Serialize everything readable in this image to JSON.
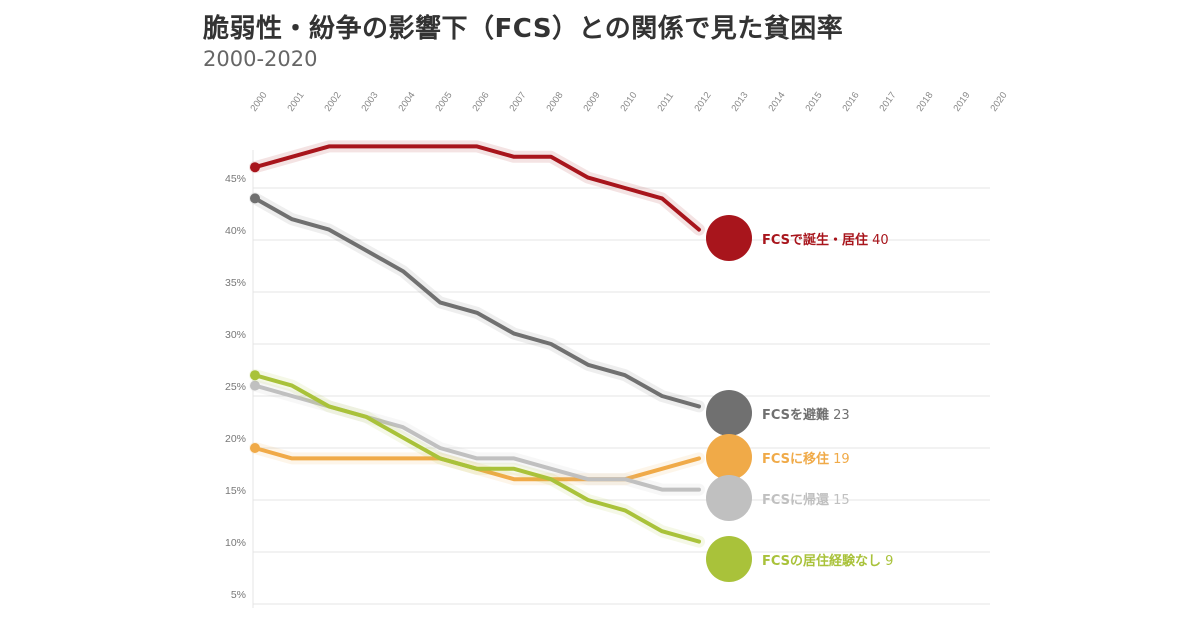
{
  "header": {
    "title": "脆弱性・紛争の影響下（FCS）との関係で見た貧困率",
    "subtitle": "2000-2020"
  },
  "chart_data": {
    "type": "line",
    "title": "脆弱性・紛争の影響下（FCS）との関係で見た貧困率",
    "subtitle": "2000-2020",
    "x": [
      2000,
      2001,
      2002,
      2003,
      2004,
      2005,
      2006,
      2007,
      2008,
      2009,
      2010,
      2011,
      2012,
      2013,
      2014,
      2015,
      2016,
      2017,
      2018,
      2019,
      2020
    ],
    "x_tick_labels": [
      "2000",
      "2001",
      "2002",
      "2003",
      "2004",
      "2005",
      "2006",
      "2007",
      "2008",
      "2009",
      "2010",
      "2011",
      "2012",
      "2013",
      "2014",
      "2015",
      "2016",
      "2017",
      "2018",
      "2019",
      "2020"
    ],
    "y_tick_labels": [
      "5%",
      "10%",
      "15%",
      "20%",
      "25%",
      "30%",
      "35%",
      "40%",
      "45%"
    ],
    "y_ticks": [
      5,
      10,
      15,
      20,
      25,
      30,
      35,
      40,
      45
    ],
    "ylim": [
      4,
      49
    ],
    "xlim": [
      2000,
      2020
    ],
    "grid": true,
    "series": [
      {
        "name": "FCSで誕生・居住",
        "end_value": "40",
        "color": "#a8151c",
        "x": [
          2000,
          2001,
          2002,
          2003,
          2004,
          2005,
          2006,
          2007,
          2008,
          2009,
          2010,
          2011,
          2012
        ],
        "values": [
          47,
          48,
          49,
          49,
          49,
          49,
          49,
          48,
          48,
          46,
          45,
          44,
          41
        ]
      },
      {
        "name": "FCSを避難",
        "end_value": "23",
        "color": "#707070",
        "x": [
          2000,
          2001,
          2002,
          2003,
          2004,
          2005,
          2006,
          2007,
          2008,
          2009,
          2010,
          2011,
          2012
        ],
        "values": [
          44,
          42,
          41,
          39,
          37,
          34,
          33,
          31,
          30,
          28,
          27,
          25,
          24
        ]
      },
      {
        "name": "FCSに移住",
        "end_value": "19",
        "color": "#f0aa48",
        "x": [
          2000,
          2001,
          2002,
          2003,
          2004,
          2005,
          2006,
          2007,
          2008,
          2009,
          2010,
          2011,
          2012
        ],
        "values": [
          20,
          19,
          19,
          19,
          19,
          19,
          18,
          17,
          17,
          17,
          17,
          18,
          19
        ]
      },
      {
        "name": "FCSに帰還",
        "end_value": "15",
        "color": "#c0c0c0",
        "x": [
          2000,
          2001,
          2002,
          2003,
          2004,
          2005,
          2006,
          2007,
          2008,
          2009,
          2010,
          2011,
          2012
        ],
        "values": [
          26,
          25,
          24,
          23,
          22,
          20,
          19,
          19,
          18,
          17,
          17,
          16,
          16
        ]
      },
      {
        "name": "FCSの居住経験なし",
        "end_value": "9",
        "color": "#a9c23a",
        "x": [
          2000,
          2001,
          2002,
          2003,
          2004,
          2005,
          2006,
          2007,
          2008,
          2009,
          2010,
          2011,
          2012
        ],
        "values": [
          27,
          26,
          24,
          23,
          21,
          19,
          18,
          18,
          17,
          15,
          14,
          12,
          11
        ]
      }
    ],
    "end_markers": [
      40,
      23,
      19,
      15,
      9
    ]
  }
}
